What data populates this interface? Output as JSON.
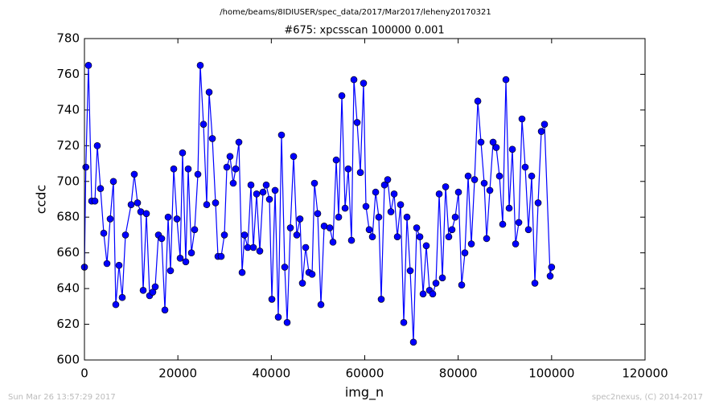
{
  "chart_data": {
    "type": "line",
    "title": "/home/beams/8IDIUSER/spec_data/2017/Mar2017/leheny20170321",
    "subtitle": "#675: xpcsscan 100000 0.001",
    "x_label": "img_n",
    "y_label": "ccdc",
    "footer_left": "Sun Mar 26 13:57:29 2017",
    "footer_right": "spec2nexus, (C) 2014-2017",
    "color": "#0000ff",
    "xlim": [
      0,
      120000
    ],
    "xticks": [
      0,
      20000,
      40000,
      60000,
      80000,
      100000,
      120000
    ],
    "ylim": [
      600,
      780
    ],
    "yticks": [
      600,
      620,
      640,
      660,
      680,
      700,
      720,
      740,
      760,
      780
    ],
    "x": [
      0,
      300,
      860,
      1550,
      2240,
      2750,
      3440,
      4130,
      4820,
      5510,
      6200,
      6710,
      7400,
      8090,
      8780,
      9990,
      10670,
      11360,
      12050,
      12570,
      13260,
      13950,
      14630,
      15150,
      15840,
      16530,
      17220,
      17910,
      18420,
      19110,
      19800,
      20490,
      21000,
      21690,
      22210,
      22900,
      23590,
      24280,
      24790,
      25480,
      26170,
      26690,
      27380,
      28060,
      28580,
      29270,
      29960,
      30480,
      31160,
      31850,
      32370,
      33060,
      33750,
      34260,
      34950,
      35640,
      36160,
      36850,
      37530,
      38220,
      38910,
      39600,
      40120,
      40810,
      41490,
      42180,
      42870,
      43390,
      44080,
      44770,
      45450,
      46140,
      46660,
      47350,
      48040,
      48730,
      49240,
      49930,
      50620,
      51310,
      52510,
      53200,
      53890,
      54410,
      55100,
      55790,
      56470,
      57160,
      57680,
      58370,
      59060,
      59740,
      60260,
      60950,
      61640,
      62330,
      63010,
      63530,
      64220,
      64910,
      65600,
      66290,
      66980,
      67670,
      68350,
      69040,
      69730,
      70420,
      71110,
      71800,
      72490,
      73170,
      73860,
      74550,
      75240,
      75930,
      76620,
      77310,
      77990,
      78680,
      79370,
      80060,
      80750,
      81440,
      82130,
      82820,
      83510,
      84200,
      84880,
      85570,
      86090,
      86780,
      87470,
      88150,
      88840,
      89530,
      90220,
      90910,
      91600,
      92290,
      92980,
      93660,
      94350,
      95040,
      95730,
      96420,
      97110,
      97800,
      98480,
      99690,
      100000
    ],
    "values": [
      652,
      708,
      765,
      689,
      689,
      720,
      696,
      671,
      654,
      679,
      700,
      631,
      653,
      635,
      670,
      687,
      704,
      688,
      683,
      639,
      682,
      636,
      638,
      641,
      670,
      668,
      628,
      680,
      650,
      707,
      679,
      657,
      716,
      655,
      707,
      660,
      673,
      704,
      765,
      732,
      687,
      750,
      724,
      688,
      658,
      658,
      670,
      708,
      714,
      699,
      707,
      722,
      649,
      670,
      663,
      698,
      663,
      693,
      661,
      694,
      698,
      690,
      634,
      695,
      624,
      726,
      652,
      621,
      674,
      714,
      670,
      679,
      643,
      663,
      649,
      648,
      699,
      682,
      631,
      675,
      674,
      666,
      712,
      680,
      748,
      685,
      707,
      667,
      757,
      733,
      705,
      755,
      686,
      673,
      669,
      694,
      680,
      634,
      698,
      701,
      683,
      693,
      669,
      687,
      621,
      680,
      650,
      610,
      674,
      669,
      637,
      664,
      639,
      637,
      643,
      693,
      646,
      697,
      669,
      673,
      680,
      694,
      642,
      660,
      703,
      665,
      701,
      745,
      722,
      699,
      668,
      695,
      722,
      719,
      703,
      676,
      757,
      685,
      718,
      665,
      677,
      735,
      708,
      673,
      703,
      643,
      688,
      728,
      732,
      647,
      652
    ]
  }
}
